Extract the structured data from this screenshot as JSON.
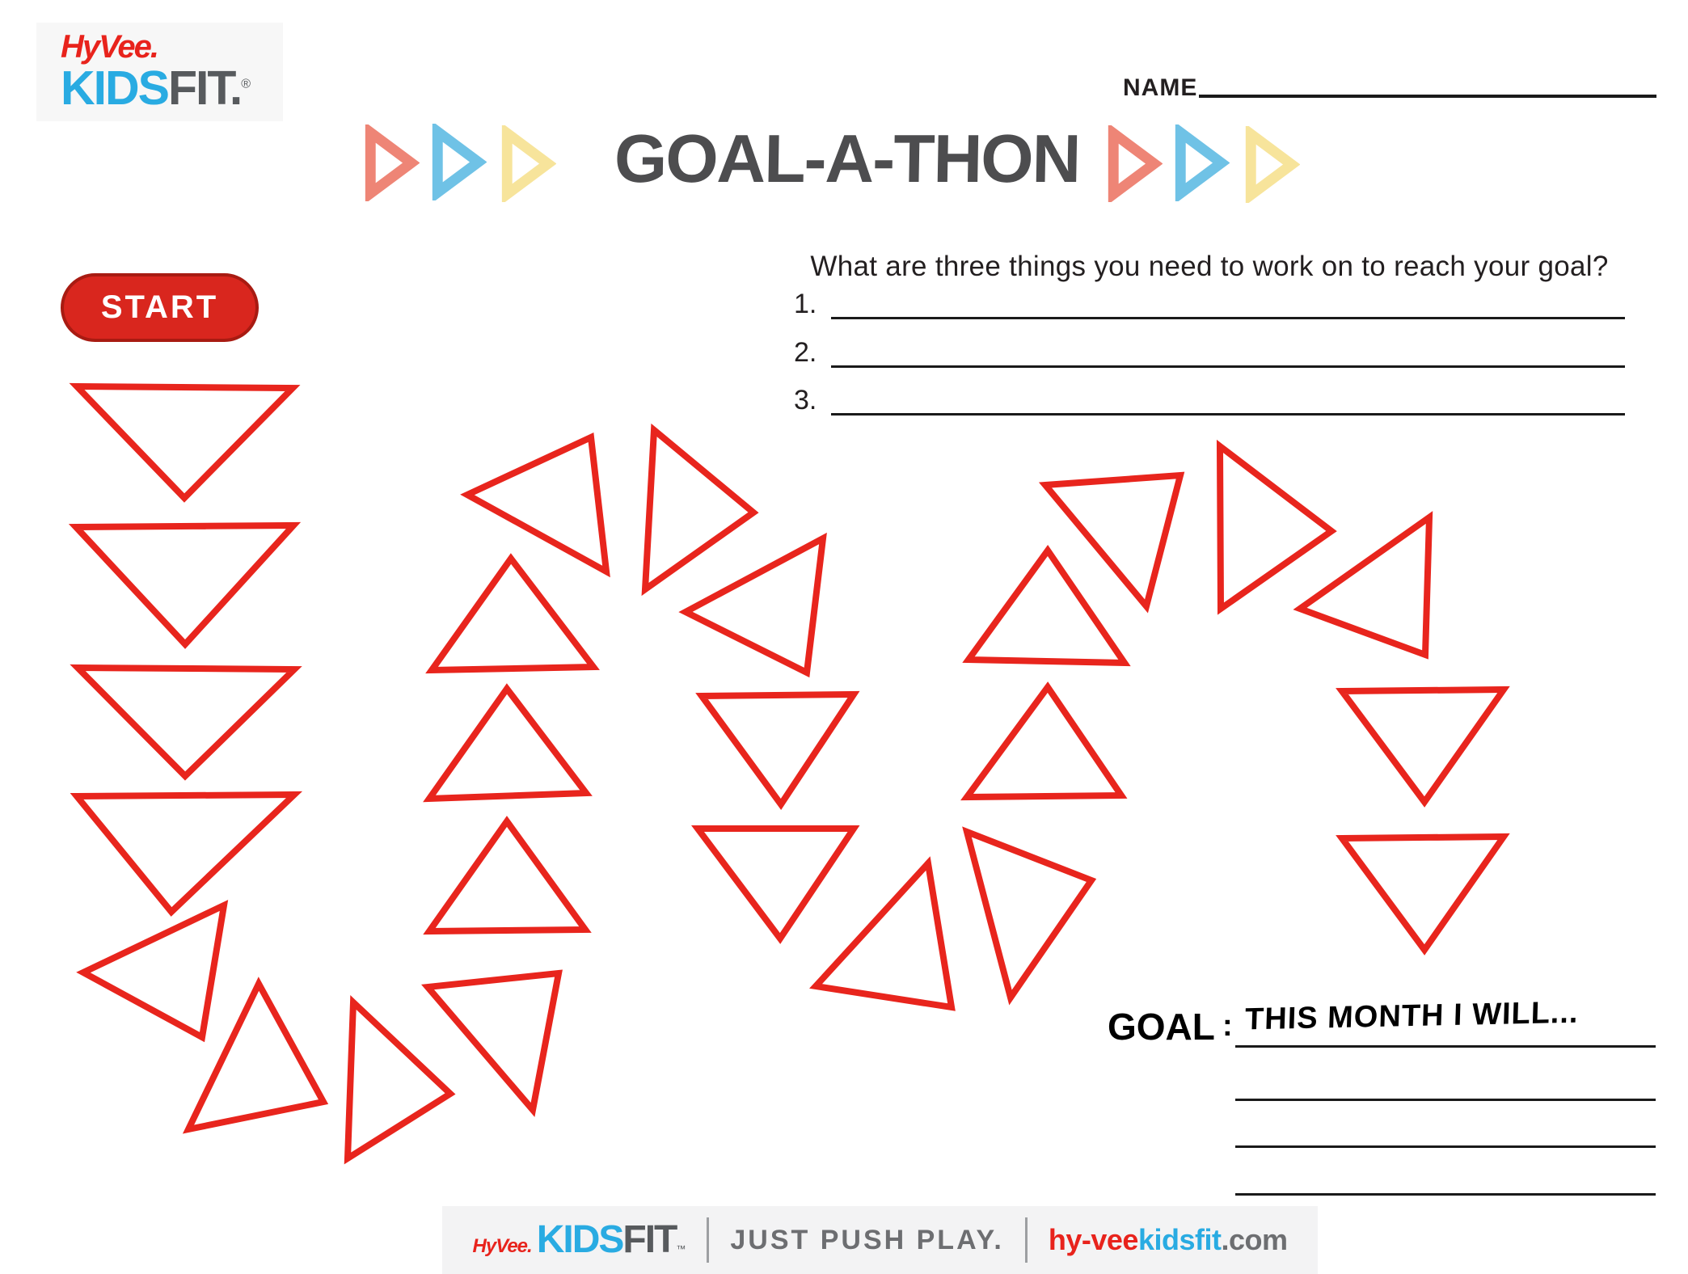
{
  "header": {
    "logo": {
      "hyvee": "HyVee.",
      "kids": "KIDS",
      "fit": "FIT.",
      "registered": "®"
    },
    "name_field": {
      "label": "NAME"
    },
    "title": "GOAL-A-THON",
    "arrow_colors": [
      "#ee8576",
      "#6fc2e6",
      "#f7e49b"
    ]
  },
  "question_section": {
    "question": "What are three things you need to work on to reach your goal?",
    "items": [
      {
        "number": "1."
      },
      {
        "number": "2."
      },
      {
        "number": "3."
      }
    ]
  },
  "start_button": {
    "label": "START"
  },
  "game_path": {
    "color": "#e8251d",
    "stroke_width": 8,
    "triangles": [
      "95,478 362,480 228,616",
      "94,652 363,650 229,797",
      "96,826 364,828 229,960",
      "95,985 364,983 212,1128",
      "277,1120 103,1203 250,1283",
      "320,1217 233,1397 400,1363",
      "437,1240 557,1353 430,1433",
      "691,1204 529,1221 659,1373",
      "627,1016 531,1152 724,1150",
      "627,852 531,988 725,981",
      "632,691 534,829 734,825",
      "731,541 578,612 750,707",
      "809,532 932,634 798,729",
      "1018,666 848,757 998,832",
      "868,861 1056,859 966,995",
      "863,1025 1056,1025 965,1161",
      "1148,1068 1009,1220 1177,1246",
      "1196,1029 1350,1089 1250,1234",
      "1296,850 1196,986 1387,984",
      "1296,681 1198,816 1391,820",
      "1293,600 1460,588 1418,750",
      "1509,552 1647,657 1510,753",
      "1768,640 1608,753 1763,810",
      "1660,855 1860,853 1762,992",
      "1660,1037 1860,1035 1762,1175"
    ]
  },
  "goal_section": {
    "label": "GOAL",
    "separator": ":",
    "prompt": "THIS MONTH I WILL..."
  },
  "footer": {
    "logo": {
      "hyvee": "HyVee.",
      "kids": "KIDS",
      "fit": "FIT",
      "tm": "™"
    },
    "tagline": "JUST PUSH PLAY.",
    "website": {
      "part1": "hy-vee",
      "part2": "kidsfit",
      "part3": ".com"
    }
  }
}
